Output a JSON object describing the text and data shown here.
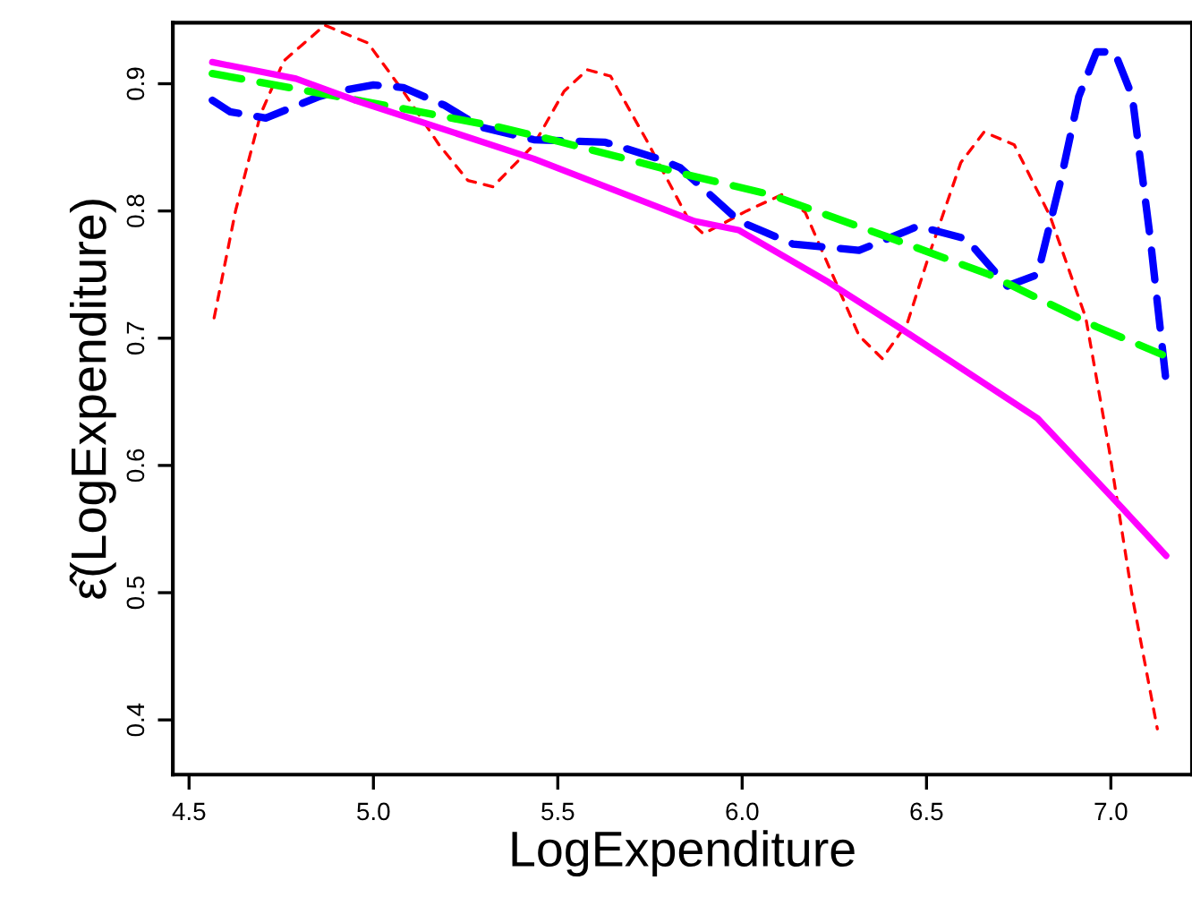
{
  "chart_data": {
    "type": "line",
    "xlabel": "LogExpenditure",
    "ylabel": "ε̂(LogExpenditure)",
    "xlim": [
      4.456,
      7.22
    ],
    "ylim": [
      0.357,
      0.948
    ],
    "xticks": [
      4.5,
      {
        "value": 5.0,
        "label": "5.0"
      },
      5.5,
      {
        "value": 6.0,
        "label": "6.0"
      },
      6.5,
      {
        "value": 7.0,
        "label": "7.0"
      }
    ],
    "yticks": [
      0.4,
      0.5,
      0.6,
      0.7,
      0.8,
      0.9
    ],
    "grid": false,
    "marker": "none",
    "series": [
      {
        "color": "#ff0000",
        "line_style": "dotted",
        "x": [
          4.568,
          4.626,
          4.694,
          4.757,
          4.868,
          4.985,
          5.081,
          5.178,
          5.256,
          5.324,
          5.435,
          5.517,
          5.58,
          5.643,
          5.74,
          5.857,
          5.895,
          6.012,
          6.109,
          6.171,
          6.254,
          6.317,
          6.38,
          6.448,
          6.51,
          6.593,
          6.656,
          6.738,
          6.835,
          6.932,
          6.995,
          7.058,
          7.126
        ],
        "values": [
          0.716,
          0.8,
          0.876,
          0.918,
          0.946,
          0.932,
          0.894,
          0.852,
          0.824,
          0.819,
          0.852,
          0.894,
          0.911,
          0.906,
          0.856,
          0.792,
          0.782,
          0.8,
          0.813,
          0.799,
          0.744,
          0.702,
          0.684,
          0.712,
          0.768,
          0.838,
          0.862,
          0.852,
          0.796,
          0.716,
          0.613,
          0.497,
          0.393
        ]
      },
      {
        "color": "#0000ff",
        "line_style": "dashed",
        "x": [
          4.563,
          4.611,
          4.708,
          4.854,
          4.902,
          5.0,
          5.081,
          5.193,
          5.29,
          5.435,
          5.629,
          5.774,
          5.832,
          5.992,
          6.138,
          6.317,
          6.477,
          6.608,
          6.719,
          6.801,
          6.864,
          6.913,
          6.961,
          7.01,
          7.058,
          7.107,
          7.15
        ],
        "values": [
          0.887,
          0.878,
          0.873,
          0.89,
          0.894,
          0.899,
          0.897,
          0.883,
          0.866,
          0.856,
          0.854,
          0.841,
          0.834,
          0.792,
          0.774,
          0.769,
          0.788,
          0.778,
          0.741,
          0.75,
          0.824,
          0.89,
          0.925,
          0.925,
          0.89,
          0.778,
          0.665
        ]
      },
      {
        "color": "#00ff00",
        "line_style": "dashed",
        "x": [
          4.563,
          5.033,
          5.338,
          5.498,
          5.857,
          6.075,
          6.4,
          6.67,
          6.961,
          7.14
        ],
        "values": [
          0.908,
          0.883,
          0.866,
          0.855,
          0.828,
          0.813,
          0.779,
          0.75,
          0.709,
          0.687
        ]
      },
      {
        "color": "#ff00ff",
        "line_style": "solid",
        "x": [
          4.563,
          4.79,
          4.95,
          5.435,
          5.871,
          5.99,
          6.234,
          6.428,
          6.801,
          7.029,
          7.15
        ],
        "values": [
          0.917,
          0.904,
          0.887,
          0.841,
          0.792,
          0.785,
          0.744,
          0.708,
          0.637,
          0.567,
          0.529
        ]
      }
    ]
  }
}
